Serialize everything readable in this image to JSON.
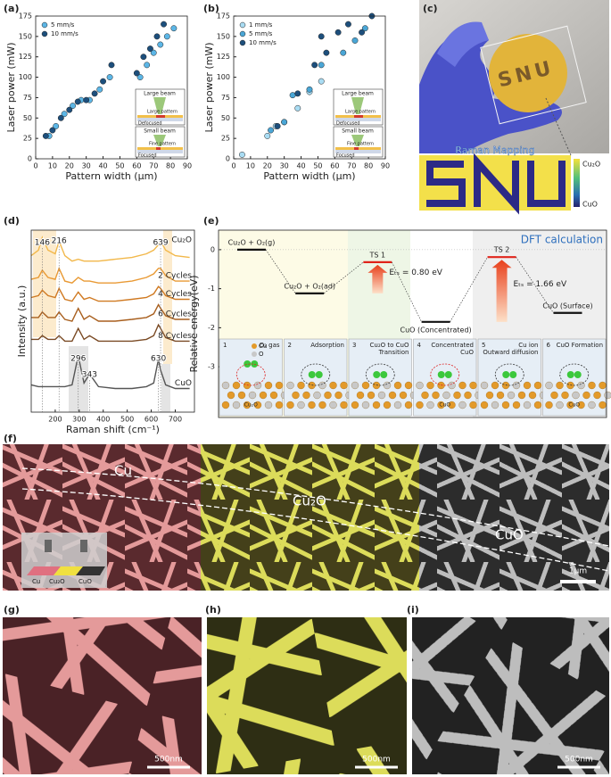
{
  "chart_data": [
    {
      "label": "(a)",
      "type": "scatter",
      "x_label": "Pattern width (μm)",
      "y_label": "Laser power (mW)",
      "xlim": [
        0,
        90
      ],
      "xticks": [
        0,
        10,
        20,
        30,
        40,
        50,
        60,
        70,
        80,
        90
      ],
      "ylim": [
        0,
        175
      ],
      "yticks": [
        0,
        25,
        50,
        75,
        100,
        125,
        150,
        175
      ],
      "legend": "upper left",
      "series": [
        {
          "name": "5 mm/s",
          "color": "#5cb6e6",
          "x": [
            8,
            12,
            17,
            22,
            27,
            32,
            38,
            44,
            62,
            66,
            70,
            74,
            78,
            82
          ],
          "values": [
            28,
            40,
            55,
            65,
            72,
            72,
            85,
            100,
            100,
            115,
            130,
            140,
            150,
            160
          ]
        },
        {
          "name": "10 mm/s",
          "color": "#1d4f7c",
          "x": [
            6,
            10,
            15,
            20,
            25,
            30,
            35,
            40,
            45,
            60,
            64,
            68,
            72,
            76
          ],
          "values": [
            28,
            35,
            50,
            60,
            70,
            72,
            80,
            95,
            115,
            105,
            125,
            135,
            150,
            165
          ]
        }
      ],
      "inset": {
        "top": [
          "Large beam",
          "Large pattern",
          "Defocused"
        ],
        "bottom": [
          "Small beam",
          "Fine pattern",
          "Focused"
        ]
      }
    },
    {
      "label": "(b)",
      "type": "scatter",
      "x_label": "Pattern width (μm)",
      "y_label": "Laser power (mW)",
      "xlim": [
        0,
        90
      ],
      "xticks": [
        0,
        10,
        20,
        30,
        40,
        50,
        60,
        70,
        80,
        90
      ],
      "ylim": [
        0,
        175
      ],
      "yticks": [
        0,
        25,
        50,
        75,
        100,
        125,
        150,
        175
      ],
      "legend": "upper left",
      "series": [
        {
          "name": "1 mm/s",
          "color": "#a9dcf3",
          "x": [
            5,
            20,
            25,
            30,
            38,
            45,
            52
          ],
          "values": [
            5,
            28,
            40,
            45,
            62,
            82,
            95
          ]
        },
        {
          "name": "5 mm/s",
          "color": "#4aa6d6",
          "x": [
            22,
            30,
            35,
            45,
            52,
            65,
            72,
            78
          ],
          "values": [
            35,
            45,
            78,
            85,
            115,
            130,
            145,
            160
          ]
        },
        {
          "name": "10 mm/s",
          "color": "#1d4f7c",
          "x": [
            26,
            38,
            48,
            52,
            55,
            62,
            68,
            76,
            82
          ],
          "values": [
            40,
            80,
            115,
            150,
            130,
            155,
            165,
            155,
            175
          ]
        }
      ],
      "inset": {
        "top": [
          "Large beam",
          "Large pattern",
          "Defocused"
        ],
        "bottom": [
          "Small beam",
          "Fine pattern",
          "Focused"
        ]
      }
    },
    {
      "label": "(d)",
      "type": "spectra",
      "x_label": "Raman shift (cm⁻¹)",
      "y_label": "Intensity (a.u.)",
      "xlim": [
        100,
        780
      ],
      "xticks": [
        200,
        300,
        400,
        500,
        600,
        700
      ],
      "ylim": [
        0,
        10
      ],
      "x": [
        100,
        130,
        146,
        170,
        200,
        216,
        240,
        270,
        296,
        320,
        343,
        380,
        450,
        520,
        580,
        610,
        630,
        639,
        660,
        700,
        760
      ],
      "series": [
        {
          "name": "Cu₂O",
          "color": "#f2b84b",
          "values": [
            8.6,
            8.9,
            9.6,
            8.9,
            8.7,
            9.4,
            8.6,
            8.3,
            8.4,
            8.3,
            8.3,
            8.3,
            8.4,
            8.5,
            8.7,
            8.9,
            9.2,
            9.4,
            8.9,
            8.6,
            8.5
          ]
        },
        {
          "name": "2 Cycles",
          "color": "#e99a35",
          "values": [
            7.3,
            7.4,
            7.8,
            7.4,
            7.3,
            7.9,
            7.2,
            7.1,
            7.4,
            7.2,
            7.2,
            7.1,
            7.1,
            7.2,
            7.4,
            7.6,
            7.9,
            7.9,
            7.5,
            7.2,
            7.2
          ]
        },
        {
          "name": "4 Cycles",
          "color": "#d07a22",
          "values": [
            6.3,
            6.4,
            6.7,
            6.4,
            6.3,
            6.8,
            6.2,
            6.1,
            6.6,
            6.2,
            6.3,
            6.1,
            6.1,
            6.2,
            6.3,
            6.5,
            6.9,
            6.8,
            6.4,
            6.2,
            6.2
          ]
        },
        {
          "name": "6 Cycles",
          "color": "#a85f1e",
          "values": [
            5.2,
            5.2,
            5.5,
            5.2,
            5.2,
            5.5,
            5.1,
            5.0,
            5.7,
            5.1,
            5.3,
            5.0,
            5.0,
            5.1,
            5.2,
            5.4,
            5.9,
            5.7,
            5.3,
            5.1,
            5.1
          ]
        },
        {
          "name": "8 Cycles",
          "color": "#7a4a24",
          "values": [
            4.0,
            4.0,
            4.2,
            4.0,
            4.0,
            4.2,
            3.9,
            3.9,
            4.6,
            4.0,
            4.2,
            3.9,
            3.9,
            3.9,
            4.0,
            4.2,
            4.8,
            4.6,
            4.1,
            3.9,
            3.9
          ]
        },
        {
          "name": "CuO",
          "color": "#555555",
          "values": [
            1.5,
            1.4,
            1.4,
            1.4,
            1.4,
            1.4,
            1.4,
            1.5,
            3.1,
            1.6,
            2.1,
            1.4,
            1.3,
            1.3,
            1.4,
            1.6,
            2.9,
            2.3,
            1.5,
            1.3,
            1.3
          ]
        }
      ],
      "peaks": [
        146,
        216,
        639,
        296,
        343,
        630
      ]
    },
    {
      "label": "(e)",
      "type": "energy",
      "title": "DFT calculation",
      "y_label": "Relative energy(eV)",
      "ylim": [
        -4.3,
        0.5
      ],
      "yticks": [
        0,
        -1,
        -2,
        -3
      ],
      "categories": [
        "Cu₂O + O₂(g)",
        "Cu₂O + O₂(ad)",
        "TS 1",
        "CuO (Concentrated)",
        "TS 2",
        "CuO (Surface)"
      ],
      "values": [
        0,
        -1.12,
        -0.32,
        -1.85,
        -0.19,
        -1.62
      ],
      "annotations": [
        "Eₜₛ = 0.80 eV",
        "Eₜₛ = 1.66 eV"
      ],
      "legend_atoms": [
        "Cu",
        "O"
      ],
      "steps": [
        {
          "num": "1",
          "text": [
            "O₂ gas"
          ],
          "note": "Cu₂O"
        },
        {
          "num": "2",
          "text": [
            "Adsorption"
          ]
        },
        {
          "num": "3",
          "text": [
            "Cu₂O to CuO",
            "Transition"
          ]
        },
        {
          "num": "4",
          "text": [
            "Concentrated",
            "CuO"
          ],
          "note": "CuO"
        },
        {
          "num": "5",
          "text": [
            "Cu ion",
            "Outward diffusion"
          ]
        },
        {
          "num": "6",
          "text": [
            "CuO Formation"
          ],
          "note": "CuO"
        }
      ]
    }
  ],
  "panels": {
    "c": {
      "label": "(c)",
      "wafer_text": "SNU",
      "map_title": "Raman Mapping",
      "colorbar": [
        "Cu₂O",
        "CuO"
      ]
    },
    "f": {
      "label": "(f)",
      "regions": [
        "Cu",
        "Cu₂O",
        "CuO"
      ],
      "inset": [
        "Cu",
        "Cu₂O",
        "CuO"
      ],
      "scale": "1μm"
    },
    "g": {
      "label": "(g)",
      "scale": "500nm"
    },
    "h": {
      "label": "(h)",
      "scale": "500nm"
    },
    "i": {
      "label": "(i)",
      "scale": "500nm"
    }
  }
}
